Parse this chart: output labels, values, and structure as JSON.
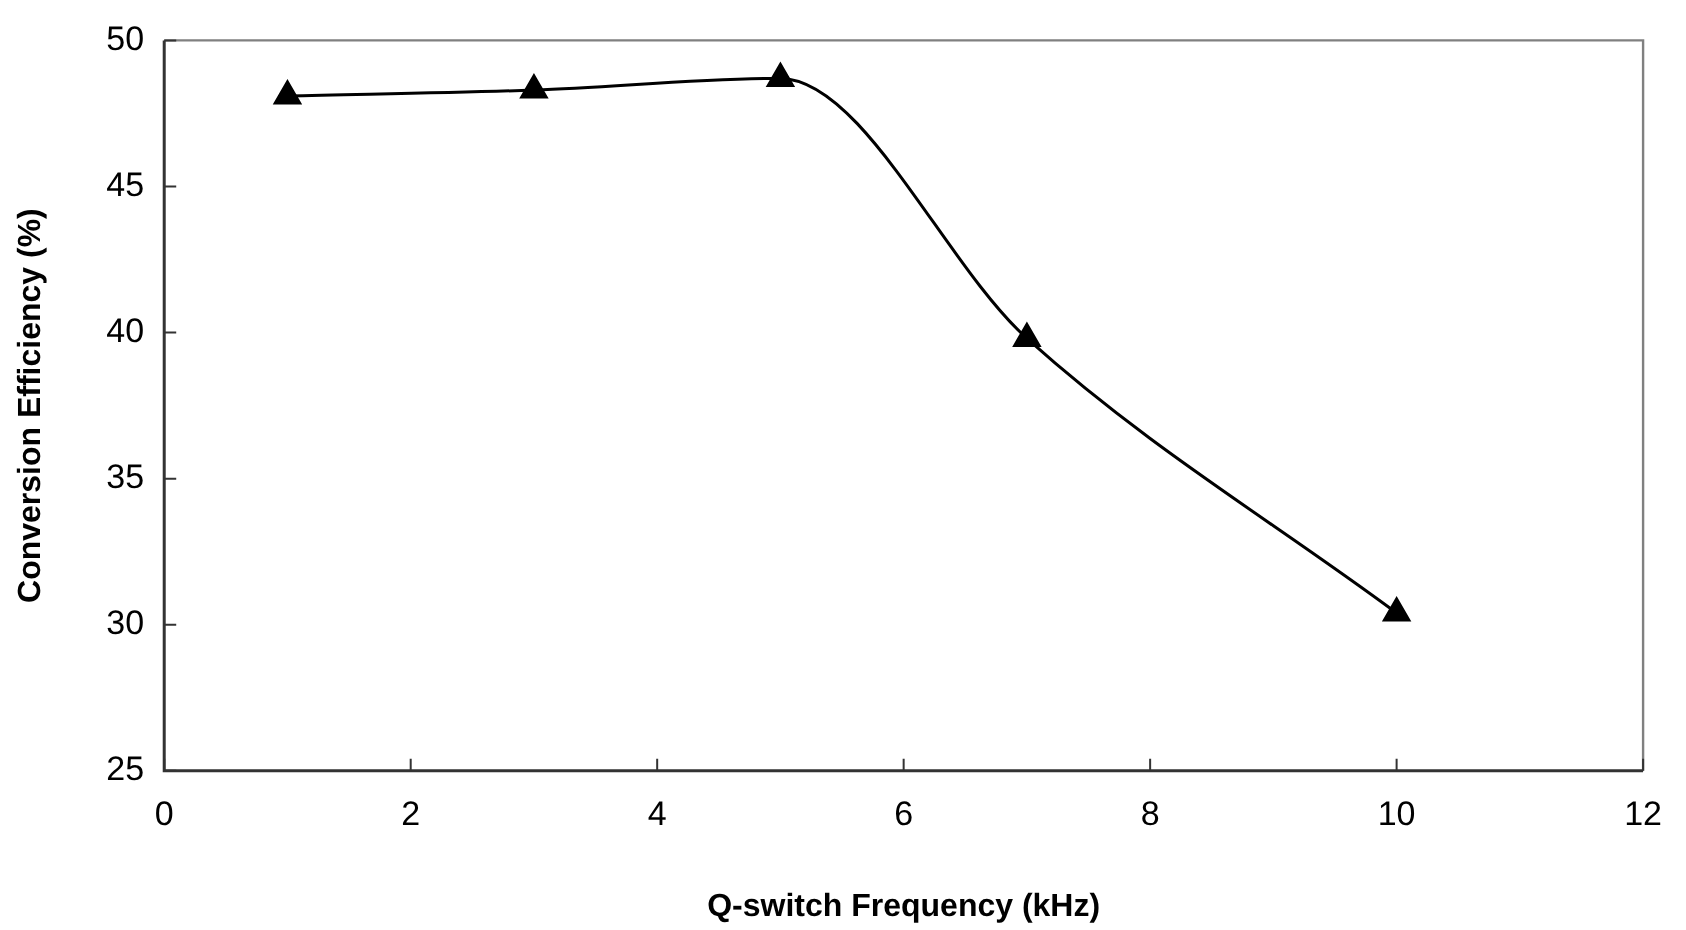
{
  "chart_data": {
    "type": "line",
    "xlabel": "Q-switch Frequency (kHz)",
    "ylabel": "Conversion Efficiency (%)",
    "x": [
      1,
      3,
      5,
      7,
      10
    ],
    "series": [
      {
        "color": "#000000",
        "values": [
          48.1,
          48.3,
          48.7,
          39.8,
          30.4
        ]
      }
    ],
    "xlim": [
      0,
      12
    ],
    "xticks": [
      0,
      2,
      4,
      6,
      8,
      10,
      12
    ],
    "ylim": [
      25,
      50
    ],
    "yticks": [
      25,
      30,
      35,
      40,
      45,
      50
    ],
    "marker": "triangle",
    "line_style": "solid",
    "legend": false
  }
}
